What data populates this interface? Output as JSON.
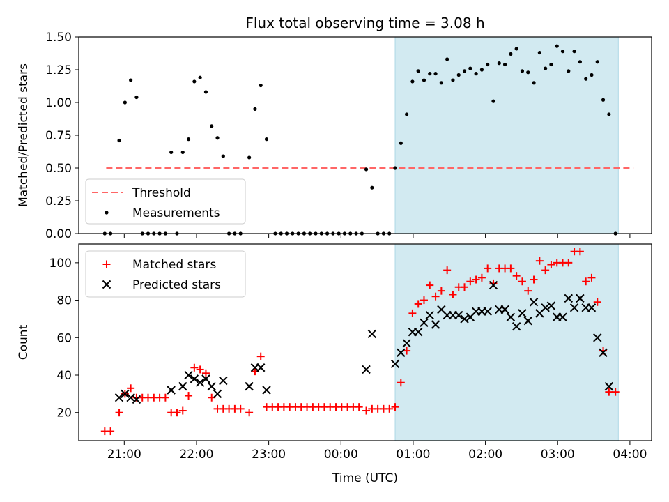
{
  "chart_data": {
    "type": "scatter",
    "title": "Flux total observing time = 3.08 h",
    "xlabel": "Time (UTC)",
    "x_ticks": [
      "21:00",
      "22:00",
      "23:00",
      "00:00",
      "01:00",
      "02:00",
      "03:00",
      "04:00"
    ],
    "x_range_hours": [
      20.37,
      28.3
    ],
    "shaded_interval_hours": [
      24.75,
      27.84
    ],
    "colors": {
      "shade": "#add8e6",
      "threshold": "#ff6666",
      "measurements": "#000000",
      "matched": "#ff0000",
      "predicted": "#000000"
    },
    "panels": [
      {
        "id": "ratio",
        "ylabel": "Matched/Predicted stars",
        "ylim": [
          0,
          1.5
        ],
        "y_ticks": [
          "0.00",
          "0.25",
          "0.50",
          "0.75",
          "1.00",
          "1.25",
          "1.50"
        ],
        "legend": {
          "placement": "lower-left",
          "entries": [
            "Threshold",
            "Measurements"
          ]
        },
        "threshold": {
          "name": "Threshold",
          "value": 0.5,
          "x_range": [
            20.75,
            28.05
          ]
        },
        "measurements": {
          "name": "Measurements",
          "points": [
            [
              20.73,
              0
            ],
            [
              20.81,
              0
            ],
            [
              20.93,
              0.71
            ],
            [
              21.01,
              1.0
            ],
            [
              21.09,
              1.17
            ],
            [
              21.17,
              1.04
            ],
            [
              21.25,
              0
            ],
            [
              21.33,
              0
            ],
            [
              21.41,
              0
            ],
            [
              21.49,
              0
            ],
            [
              21.57,
              0
            ],
            [
              21.65,
              0.62
            ],
            [
              21.73,
              0
            ],
            [
              21.81,
              0.62
            ],
            [
              21.89,
              0.72
            ],
            [
              21.97,
              1.16
            ],
            [
              22.05,
              1.19
            ],
            [
              22.13,
              1.08
            ],
            [
              22.21,
              0.82
            ],
            [
              22.29,
              0.73
            ],
            [
              22.37,
              0.59
            ],
            [
              22.45,
              0
            ],
            [
              22.53,
              0
            ],
            [
              22.61,
              0
            ],
            [
              22.73,
              0.58
            ],
            [
              22.81,
              0.95
            ],
            [
              22.89,
              1.13
            ],
            [
              22.97,
              0.72
            ],
            [
              23.09,
              0
            ],
            [
              23.17,
              0
            ],
            [
              23.25,
              0
            ],
            [
              23.33,
              0
            ],
            [
              23.41,
              0
            ],
            [
              23.49,
              0
            ],
            [
              23.57,
              0
            ],
            [
              23.65,
              0
            ],
            [
              23.73,
              0
            ],
            [
              23.81,
              0
            ],
            [
              23.89,
              0
            ],
            [
              23.97,
              0
            ],
            [
              24.05,
              0
            ],
            [
              24.13,
              0
            ],
            [
              24.21,
              0
            ],
            [
              24.29,
              0
            ],
            [
              24.35,
              0.49
            ],
            [
              24.43,
              0.35
            ],
            [
              24.51,
              0
            ],
            [
              24.59,
              0
            ],
            [
              24.67,
              0
            ],
            [
              24.75,
              0.5
            ],
            [
              24.83,
              0.69
            ],
            [
              24.91,
              0.91
            ],
            [
              24.99,
              1.16
            ],
            [
              25.07,
              1.24
            ],
            [
              25.15,
              1.17
            ],
            [
              25.23,
              1.22
            ],
            [
              25.31,
              1.22
            ],
            [
              25.39,
              1.15
            ],
            [
              25.47,
              1.33
            ],
            [
              25.55,
              1.17
            ],
            [
              25.63,
              1.21
            ],
            [
              25.71,
              1.24
            ],
            [
              25.79,
              1.26
            ],
            [
              25.87,
              1.22
            ],
            [
              25.95,
              1.25
            ],
            [
              26.03,
              1.29
            ],
            [
              26.11,
              1.01
            ],
            [
              26.19,
              1.3
            ],
            [
              26.27,
              1.29
            ],
            [
              26.35,
              1.37
            ],
            [
              26.43,
              1.41
            ],
            [
              26.51,
              1.24
            ],
            [
              26.59,
              1.23
            ],
            [
              26.67,
              1.15
            ],
            [
              26.75,
              1.38
            ],
            [
              26.83,
              1.26
            ],
            [
              26.91,
              1.29
            ],
            [
              26.99,
              1.43
            ],
            [
              27.07,
              1.39
            ],
            [
              27.15,
              1.24
            ],
            [
              27.23,
              1.39
            ],
            [
              27.31,
              1.31
            ],
            [
              27.39,
              1.18
            ],
            [
              27.47,
              1.21
            ],
            [
              27.55,
              1.31
            ],
            [
              27.63,
              1.02
            ],
            [
              27.71,
              0.91
            ],
            [
              27.8,
              0
            ]
          ]
        }
      },
      {
        "id": "count",
        "ylabel": "Count",
        "ylim": [
          5,
          110
        ],
        "y_ticks": [
          "20",
          "40",
          "60",
          "80",
          "100"
        ],
        "legend": {
          "placement": "top-left",
          "entries": [
            "Matched stars",
            "Predicted stars"
          ]
        },
        "matched": {
          "name": "Matched stars",
          "points": [
            [
              20.73,
              10
            ],
            [
              20.81,
              10
            ],
            [
              20.93,
              20
            ],
            [
              21.01,
              30
            ],
            [
              21.09,
              33
            ],
            [
              21.17,
              28
            ],
            [
              21.25,
              28
            ],
            [
              21.33,
              28
            ],
            [
              21.41,
              28
            ],
            [
              21.49,
              28
            ],
            [
              21.57,
              28
            ],
            [
              21.65,
              20
            ],
            [
              21.73,
              20
            ],
            [
              21.81,
              21
            ],
            [
              21.89,
              29
            ],
            [
              21.97,
              44
            ],
            [
              22.05,
              43
            ],
            [
              22.13,
              41
            ],
            [
              22.21,
              28
            ],
            [
              22.29,
              22
            ],
            [
              22.37,
              22
            ],
            [
              22.45,
              22
            ],
            [
              22.53,
              22
            ],
            [
              22.61,
              22
            ],
            [
              22.73,
              20
            ],
            [
              22.81,
              42
            ],
            [
              22.89,
              50
            ],
            [
              22.97,
              23
            ],
            [
              23.05,
              23
            ],
            [
              23.13,
              23
            ],
            [
              23.21,
              23
            ],
            [
              23.29,
              23
            ],
            [
              23.37,
              23
            ],
            [
              23.45,
              23
            ],
            [
              23.53,
              23
            ],
            [
              23.61,
              23
            ],
            [
              23.69,
              23
            ],
            [
              23.77,
              23
            ],
            [
              23.85,
              23
            ],
            [
              23.93,
              23
            ],
            [
              24.01,
              23
            ],
            [
              24.09,
              23
            ],
            [
              24.17,
              23
            ],
            [
              24.25,
              23
            ],
            [
              24.35,
              21
            ],
            [
              24.43,
              22
            ],
            [
              24.51,
              22
            ],
            [
              24.59,
              22
            ],
            [
              24.67,
              22
            ],
            [
              24.75,
              23
            ],
            [
              24.83,
              36
            ],
            [
              24.91,
              53
            ],
            [
              24.99,
              73
            ],
            [
              25.07,
              78
            ],
            [
              25.15,
              80
            ],
            [
              25.23,
              88
            ],
            [
              25.31,
              82
            ],
            [
              25.39,
              85
            ],
            [
              25.47,
              96
            ],
            [
              25.55,
              83
            ],
            [
              25.63,
              87
            ],
            [
              25.71,
              87
            ],
            [
              25.79,
              90
            ],
            [
              25.87,
              91
            ],
            [
              25.95,
              92
            ],
            [
              26.03,
              97
            ],
            [
              26.11,
              89
            ],
            [
              26.19,
              97
            ],
            [
              26.27,
              97
            ],
            [
              26.35,
              97
            ],
            [
              26.43,
              93
            ],
            [
              26.51,
              90
            ],
            [
              26.59,
              85
            ],
            [
              26.67,
              91
            ],
            [
              26.75,
              101
            ],
            [
              26.83,
              96
            ],
            [
              26.91,
              99
            ],
            [
              26.99,
              100
            ],
            [
              27.07,
              100
            ],
            [
              27.15,
              100
            ],
            [
              27.23,
              106
            ],
            [
              27.31,
              106
            ],
            [
              27.39,
              90
            ],
            [
              27.47,
              92
            ],
            [
              27.55,
              79
            ],
            [
              27.63,
              53
            ],
            [
              27.71,
              31
            ],
            [
              27.8,
              31
            ]
          ]
        },
        "predicted": {
          "name": "Predicted stars",
          "points": [
            [
              20.93,
              28
            ],
            [
              21.01,
              30
            ],
            [
              21.09,
              28
            ],
            [
              21.17,
              27
            ],
            [
              21.65,
              32
            ],
            [
              21.81,
              34
            ],
            [
              21.89,
              40
            ],
            [
              21.97,
              38
            ],
            [
              22.05,
              36
            ],
            [
              22.13,
              38
            ],
            [
              22.21,
              34
            ],
            [
              22.29,
              30
            ],
            [
              22.37,
              37
            ],
            [
              22.73,
              34
            ],
            [
              22.81,
              44
            ],
            [
              22.89,
              44
            ],
            [
              22.97,
              32
            ],
            [
              24.35,
              43
            ],
            [
              24.43,
              62
            ],
            [
              24.75,
              46
            ],
            [
              24.83,
              52
            ],
            [
              24.91,
              57
            ],
            [
              24.99,
              63
            ],
            [
              25.07,
              63
            ],
            [
              25.15,
              68
            ],
            [
              25.23,
              72
            ],
            [
              25.31,
              67
            ],
            [
              25.39,
              75
            ],
            [
              25.47,
              72
            ],
            [
              25.55,
              72
            ],
            [
              25.63,
              72
            ],
            [
              25.71,
              70
            ],
            [
              25.79,
              71
            ],
            [
              25.87,
              74
            ],
            [
              25.95,
              74
            ],
            [
              26.03,
              74
            ],
            [
              26.11,
              88
            ],
            [
              26.19,
              75
            ],
            [
              26.27,
              75
            ],
            [
              26.35,
              71
            ],
            [
              26.43,
              66
            ],
            [
              26.51,
              73
            ],
            [
              26.59,
              69
            ],
            [
              26.67,
              79
            ],
            [
              26.75,
              73
            ],
            [
              26.83,
              76
            ],
            [
              26.91,
              77
            ],
            [
              26.99,
              71
            ],
            [
              27.07,
              71
            ],
            [
              27.15,
              81
            ],
            [
              27.23,
              76
            ],
            [
              27.31,
              81
            ],
            [
              27.39,
              76
            ],
            [
              27.47,
              76
            ],
            [
              27.55,
              60
            ],
            [
              27.63,
              52
            ],
            [
              27.71,
              34
            ]
          ]
        }
      }
    ]
  }
}
